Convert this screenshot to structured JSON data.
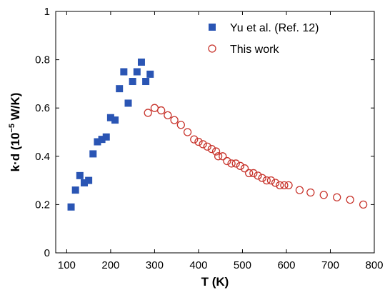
{
  "chart_data": {
    "type": "scatter",
    "title": "",
    "xlabel": "T (K)",
    "ylabel_prefix": "k·d (10",
    "ylabel_exp": "−5",
    "ylabel_suffix": " W/K)",
    "xlim": [
      75,
      800
    ],
    "ylim": [
      0,
      1
    ],
    "x_ticks": [
      100,
      200,
      300,
      400,
      500,
      600,
      700,
      800
    ],
    "x_tick_labels": [
      "100",
      "200",
      "300",
      "400",
      "500",
      "600",
      "700",
      "800"
    ],
    "y_ticks": [
      0,
      0.2,
      0.4,
      0.6,
      0.8,
      1
    ],
    "y_tick_labels": [
      "0",
      "0.2",
      "0.4",
      "0.6",
      "0.8",
      "1"
    ],
    "grid": false,
    "legend_position": "top-right",
    "series": [
      {
        "name": "Yu et al. (Ref. 12)",
        "marker": "filled-square",
        "color": "#2a55b4",
        "x": [
          110,
          120,
          130,
          140,
          150,
          160,
          170,
          180,
          190,
          200,
          210,
          220,
          230,
          240,
          250,
          260,
          270,
          280,
          290
        ],
        "y": [
          0.19,
          0.26,
          0.32,
          0.29,
          0.3,
          0.41,
          0.46,
          0.47,
          0.48,
          0.56,
          0.55,
          0.68,
          0.75,
          0.62,
          0.71,
          0.75,
          0.79,
          0.71,
          0.74
        ]
      },
      {
        "name": "This work",
        "marker": "open-circle",
        "color": "#c8352d",
        "x": [
          285,
          300,
          315,
          330,
          345,
          360,
          375,
          390,
          400,
          410,
          420,
          430,
          440,
          445,
          455,
          465,
          475,
          485,
          495,
          505,
          515,
          525,
          535,
          545,
          555,
          565,
          575,
          585,
          595,
          605,
          630,
          655,
          685,
          715,
          745,
          775
        ],
        "y": [
          0.58,
          0.6,
          0.59,
          0.57,
          0.55,
          0.53,
          0.5,
          0.47,
          0.46,
          0.45,
          0.44,
          0.43,
          0.42,
          0.4,
          0.4,
          0.38,
          0.37,
          0.37,
          0.36,
          0.35,
          0.33,
          0.33,
          0.32,
          0.31,
          0.3,
          0.3,
          0.29,
          0.28,
          0.28,
          0.28,
          0.26,
          0.25,
          0.24,
          0.23,
          0.22,
          0.2
        ]
      }
    ]
  }
}
